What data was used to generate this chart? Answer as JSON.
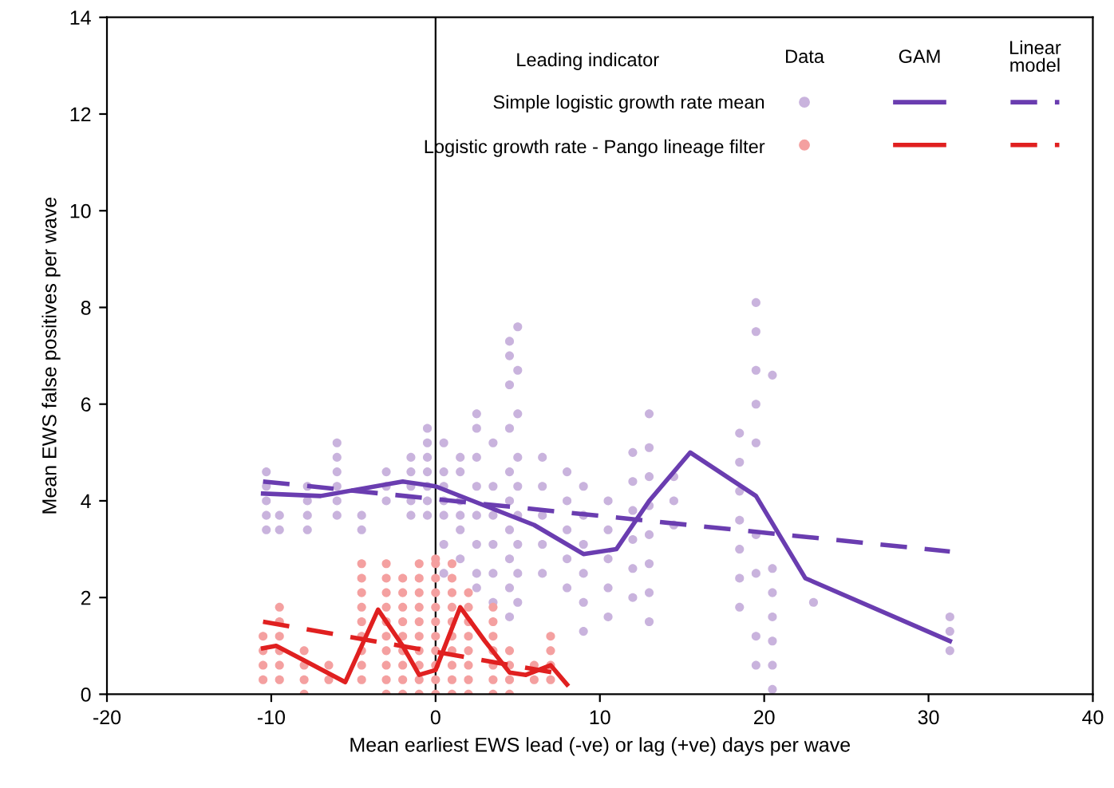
{
  "chart_data": {
    "type": "scatter",
    "xlabel": "Mean earliest EWS lead (-ve) or lag (+ve) days per wave",
    "ylabel": "Mean EWS false positives per wave",
    "legend_title": "Leading indicator",
    "annotations": [
      "Data",
      "GAM",
      "Linear model"
    ],
    "xlim": [
      -20,
      40
    ],
    "xticks": [
      -20,
      -10,
      0,
      10,
      20,
      30,
      40
    ],
    "ylim": [
      0,
      14
    ],
    "yticks": [
      0,
      2,
      4,
      6,
      8,
      10,
      12,
      14
    ],
    "grid": false,
    "legend": "top right",
    "ref_lines": [
      {
        "axis": "x",
        "value": 0,
        "color": "#000000",
        "line_style": "solid"
      }
    ],
    "series": [
      {
        "name": "Simple logistic growth rate mean",
        "marker": "circle",
        "color": "#c9b3dd",
        "x": [
          -10.3,
          -10.3,
          -10.3,
          -10.3,
          -10.3,
          -9.5,
          -9.5,
          -7.8,
          -7.8,
          -7.8,
          -7.8,
          -6,
          -6,
          -6,
          -6,
          -6,
          -6,
          -4.5,
          -4.5,
          -3,
          -3,
          -3,
          -1.5,
          -1.5,
          -1.5,
          -1.5,
          -1.5,
          -0.5,
          -0.5,
          -0.5,
          -0.5,
          -0.5,
          -0.5,
          -0.5,
          0.5,
          0.5,
          0.5,
          0.5,
          0.5,
          0.5,
          0.5,
          1.5,
          1.5,
          1.5,
          1.5,
          1.5,
          1.5,
          2.5,
          2.5,
          2.5,
          2.5,
          2.5,
          2.5,
          2.5,
          2.5,
          3.5,
          3.5,
          3.5,
          3.5,
          3.5,
          3.5,
          4.5,
          4.5,
          4.5,
          4.5,
          4.5,
          4.5,
          4.5,
          4.5,
          4.5,
          4.5,
          5,
          5,
          5,
          5,
          5,
          5,
          5,
          5,
          5,
          6.5,
          6.5,
          6.5,
          6.5,
          6.5,
          8,
          8,
          8,
          8,
          8,
          9,
          9,
          9,
          9,
          9,
          9,
          10.5,
          10.5,
          10.5,
          10.5,
          10.5,
          12,
          12,
          12,
          12,
          12,
          12,
          13,
          13,
          13,
          13,
          13,
          13,
          13,
          13,
          14.5,
          14.5,
          14.5,
          18.5,
          18.5,
          18.5,
          18.5,
          18.5,
          18.5,
          18.5,
          19.5,
          19.5,
          19.5,
          19.5,
          19.5,
          19.5,
          19.5,
          19.5,
          19.5,
          20.5,
          20.5,
          20.5,
          20.5,
          20.5,
          20.5,
          20.5,
          23,
          31.3,
          31.3,
          31.3
        ],
        "values": [
          3.4,
          3.7,
          4.0,
          4.3,
          4.6,
          3.4,
          3.7,
          3.4,
          3.7,
          4.0,
          4.3,
          3.7,
          4.0,
          4.3,
          4.6,
          4.9,
          5.2,
          3.4,
          3.7,
          4.0,
          4.3,
          4.6,
          3.7,
          4.0,
          4.3,
          4.6,
          4.9,
          3.7,
          4.0,
          4.3,
          4.6,
          4.9,
          5.2,
          5.5,
          2.5,
          3.1,
          3.7,
          4.0,
          4.3,
          4.6,
          5.2,
          2.8,
          3.4,
          3.7,
          4.0,
          4.6,
          4.9,
          2.2,
          2.5,
          3.1,
          3.7,
          4.3,
          4.9,
          5.5,
          5.8,
          1.9,
          2.5,
          3.1,
          3.7,
          4.3,
          5.2,
          1.6,
          2.2,
          2.8,
          3.4,
          4.0,
          4.6,
          5.5,
          6.4,
          7.0,
          7.3,
          1.9,
          2.5,
          3.1,
          3.7,
          4.3,
          4.9,
          5.8,
          6.7,
          7.6,
          2.5,
          3.1,
          3.7,
          4.3,
          4.9,
          2.2,
          2.8,
          3.4,
          4.0,
          4.6,
          1.3,
          1.9,
          2.5,
          3.1,
          3.7,
          4.3,
          1.6,
          2.2,
          2.8,
          3.4,
          4.0,
          2.0,
          2.6,
          3.2,
          3.8,
          4.4,
          5.0,
          1.5,
          2.1,
          2.7,
          3.3,
          3.9,
          4.5,
          5.1,
          5.8,
          3.5,
          4.0,
          4.5,
          1.8,
          2.4,
          3.0,
          3.6,
          4.2,
          4.8,
          5.4,
          0.6,
          1.2,
          2.5,
          3.3,
          5.2,
          6.0,
          6.7,
          7.5,
          8.1,
          0.1,
          0.6,
          1.1,
          1.6,
          2.1,
          2.6,
          6.6,
          1.9,
          0.9,
          1.3,
          1.6
        ]
      },
      {
        "name": "Logistic growth rate - Pango lineage filter",
        "marker": "circle",
        "color": "#f4a0a0",
        "x": [
          -10.5,
          -10.5,
          -10.5,
          -10.5,
          -9.5,
          -9.5,
          -9.5,
          -9.5,
          -9.5,
          -9.5,
          -8,
          -8,
          -8,
          -8,
          -6.5,
          -6.5,
          -4.5,
          -4.5,
          -4.5,
          -4.5,
          -4.5,
          -4.5,
          -4.5,
          -4.5,
          -4.5,
          -3,
          -3,
          -3,
          -3,
          -3,
          -3,
          -3,
          -3,
          -3,
          -3,
          -2,
          -2,
          -2,
          -2,
          -2,
          -2,
          -2,
          -2,
          -2,
          -1,
          -1,
          -1,
          -1,
          -1,
          -1,
          -1,
          -1,
          -1,
          -1,
          0,
          0,
          0,
          0,
          0,
          0,
          0,
          0,
          0,
          0,
          0,
          1,
          1,
          1,
          1,
          1,
          1,
          1,
          1,
          1,
          1,
          2,
          2,
          2,
          2,
          2,
          2,
          2,
          2,
          3.5,
          3.5,
          3.5,
          3.5,
          3.5,
          3.5,
          3.5,
          4.5,
          4.5,
          4.5,
          4.5,
          6,
          6,
          7,
          7,
          7,
          7
        ],
        "values": [
          0.3,
          0.6,
          0.9,
          1.2,
          0.3,
          0.6,
          0.9,
          1.2,
          1.5,
          1.8,
          0.0,
          0.3,
          0.6,
          0.9,
          0.3,
          0.6,
          0.3,
          0.6,
          0.9,
          1.2,
          1.5,
          1.8,
          2.1,
          2.4,
          2.7,
          0.0,
          0.3,
          0.6,
          0.9,
          1.2,
          1.5,
          1.8,
          2.1,
          2.4,
          2.7,
          0.0,
          0.3,
          0.6,
          0.9,
          1.2,
          1.5,
          1.8,
          2.1,
          2.4,
          0.0,
          0.3,
          0.6,
          0.9,
          1.2,
          1.5,
          1.8,
          2.1,
          2.4,
          2.7,
          0.0,
          0.3,
          0.6,
          0.9,
          1.2,
          1.5,
          1.8,
          2.1,
          2.4,
          2.7,
          2.8,
          0.0,
          0.3,
          0.6,
          0.9,
          1.2,
          1.5,
          1.8,
          2.1,
          2.4,
          2.7,
          0.0,
          0.3,
          0.6,
          0.9,
          1.2,
          1.5,
          1.8,
          2.1,
          0.0,
          0.3,
          0.6,
          0.9,
          1.2,
          1.5,
          1.8,
          0.0,
          0.3,
          0.6,
          0.9,
          0.3,
          0.6,
          0.3,
          0.6,
          0.9,
          1.2
        ]
      },
      {
        "type": "line",
        "line_style": "solid",
        "color": "#6a3db0",
        "x": [
          -10.5,
          -7,
          -2,
          0,
          3,
          6,
          9,
          11,
          13,
          15.5,
          19.5,
          22.5,
          31.3
        ],
        "values": [
          4.15,
          4.1,
          4.4,
          4.3,
          3.9,
          3.5,
          2.9,
          3.0,
          4.0,
          5.0,
          4.1,
          2.4,
          1.1
        ]
      },
      {
        "type": "line",
        "line_style": "dashed",
        "color": "#6a3db0",
        "x": [
          -10.5,
          31.3
        ],
        "values": [
          4.4,
          2.95
        ]
      },
      {
        "type": "line",
        "line_style": "solid",
        "color": "#e02020",
        "x": [
          -10.5,
          -9.7,
          -8,
          -5.5,
          -3.5,
          -2,
          -1,
          0,
          1.5,
          3,
          4.5,
          5.5,
          7,
          8
        ],
        "values": [
          0.95,
          1.0,
          0.7,
          0.25,
          1.75,
          1.0,
          0.4,
          0.5,
          1.8,
          1.1,
          0.45,
          0.4,
          0.6,
          0.2
        ]
      },
      {
        "type": "line",
        "line_style": "dashed",
        "color": "#e02020",
        "x": [
          -10.5,
          8
        ],
        "values": [
          1.5,
          0.4
        ]
      }
    ]
  }
}
